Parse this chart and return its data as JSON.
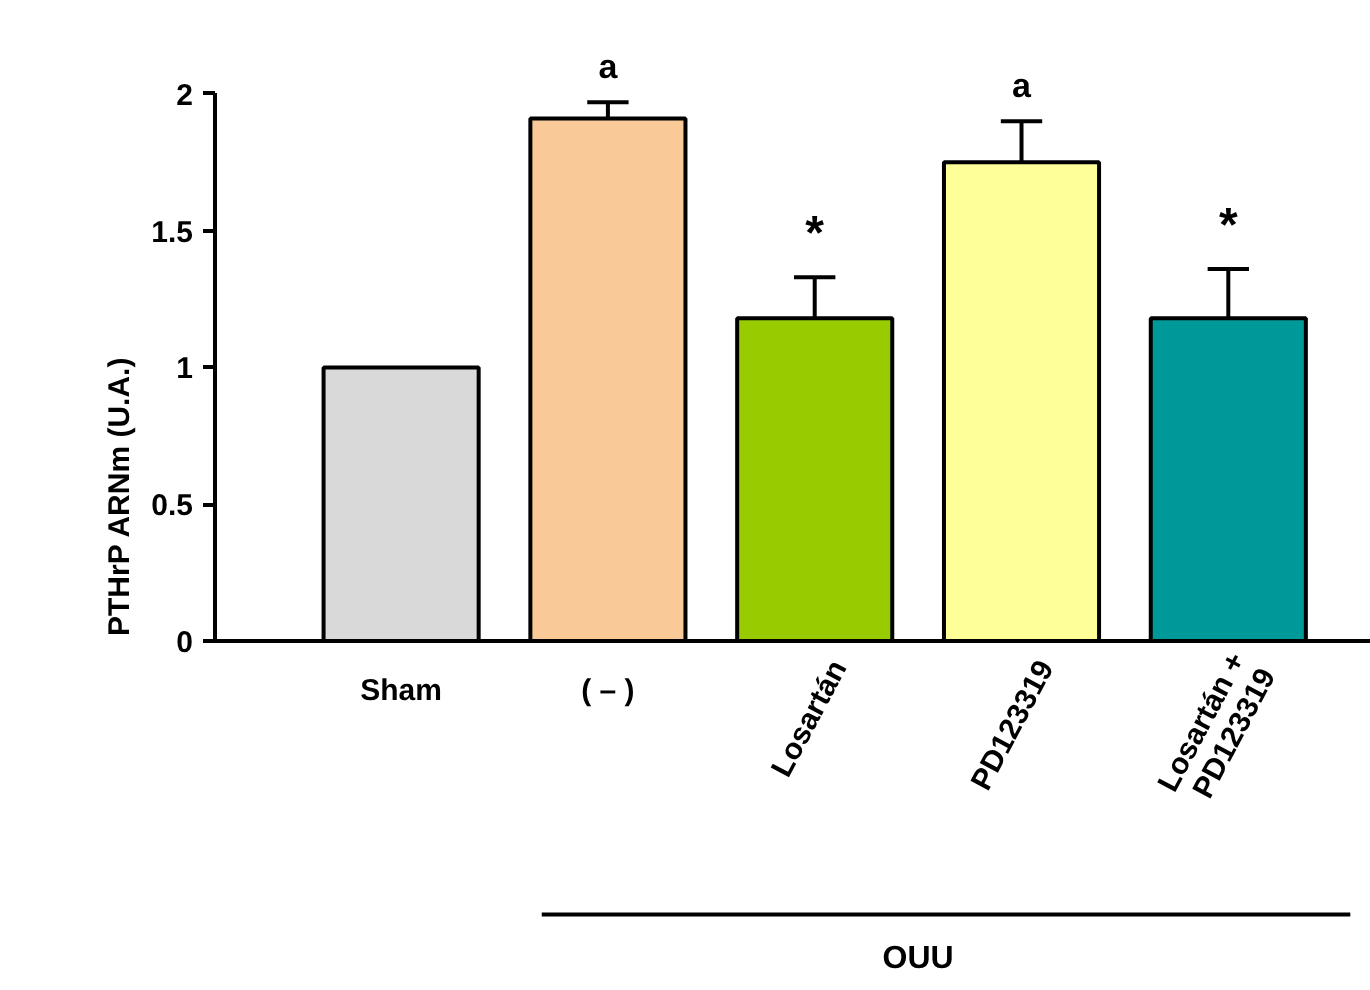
{
  "chart_data": {
    "type": "bar",
    "ylabel": "PTHrP ARNm (U.A.)",
    "categories": [
      "Sham",
      "( – )",
      "Losartán",
      "PD123319",
      "Losartán +\nPD123319"
    ],
    "values": [
      1.0,
      1.91,
      1.18,
      1.75,
      1.18
    ],
    "colors": [
      "#d9d9d9",
      "#f9c998",
      "#99cc00",
      "#ffff99",
      "#009999"
    ],
    "errors": [
      null,
      0.06,
      0.15,
      0.15,
      0.18
    ],
    "ylim": [
      0,
      2
    ],
    "yticks": [
      0,
      0.5,
      1,
      1.5,
      2
    ],
    "grid": false,
    "annotations": [
      {
        "text": "a",
        "x": "( – )",
        "y": 1.97
      },
      {
        "text": "*",
        "x": "Losartán",
        "y": 1.33
      },
      {
        "text": "a",
        "x": "PD123319",
        "y": 1.9
      },
      {
        "text": "*",
        "x": "Losartán +\nPD123319",
        "y": 1.36
      },
      "OUU"
    ]
  }
}
